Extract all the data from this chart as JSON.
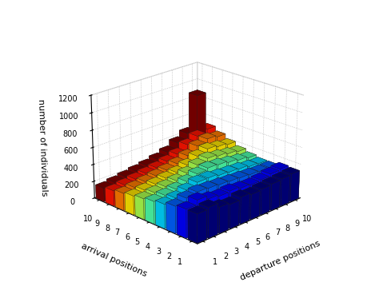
{
  "xlabel": "departure positions",
  "ylabel": "arrival positions",
  "zlabel": "number of individuals",
  "zlim": [
    0,
    1200
  ],
  "zticks": [
    0,
    200,
    400,
    600,
    800,
    1000,
    1200
  ],
  "n": 10,
  "matrix": [
    [
      330,
      330,
      310,
      280,
      260,
      240,
      220,
      200,
      180,
      160
    ],
    [
      350,
      380,
      350,
      300,
      280,
      260,
      240,
      220,
      200,
      180
    ],
    [
      300,
      340,
      370,
      340,
      300,
      280,
      260,
      240,
      220,
      200
    ],
    [
      280,
      320,
      360,
      380,
      340,
      300,
      280,
      260,
      240,
      220
    ],
    [
      310,
      330,
      350,
      380,
      380,
      340,
      300,
      280,
      260,
      240
    ],
    [
      290,
      310,
      340,
      360,
      400,
      390,
      340,
      310,
      290,
      270
    ],
    [
      300,
      300,
      330,
      350,
      390,
      420,
      400,
      360,
      330,
      310
    ],
    [
      310,
      310,
      320,
      340,
      370,
      400,
      440,
      430,
      400,
      380
    ],
    [
      320,
      330,
      310,
      320,
      350,
      380,
      420,
      470,
      460,
      450
    ],
    [
      330,
      340,
      310,
      310,
      330,
      360,
      400,
      450,
      500,
      870
    ]
  ],
  "background_color": "#ffffff",
  "figsize": [
    4.74,
    3.73
  ],
  "dpi": 100
}
